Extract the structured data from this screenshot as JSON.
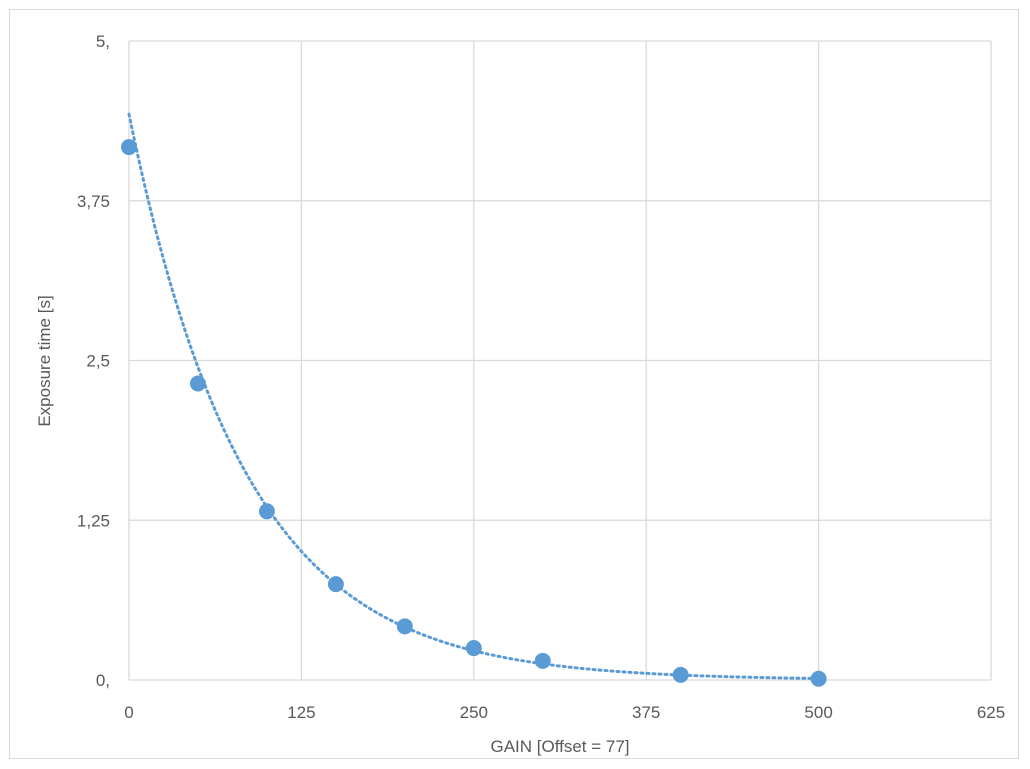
{
  "chart_data": {
    "type": "scatter",
    "title": "",
    "xlabel": "GAIN [Offset = 77]",
    "ylabel": "Exposure time [s]",
    "xlim": [
      0,
      625
    ],
    "ylim": [
      0,
      5
    ],
    "x_ticks": [
      0,
      125,
      250,
      375,
      500,
      625
    ],
    "x_tick_labels": [
      "0",
      "125",
      "250",
      "375",
      "500",
      "625"
    ],
    "y_ticks": [
      0,
      1.25,
      2.5,
      3.75,
      5
    ],
    "y_tick_labels": [
      "0,",
      "1,25",
      "2,5",
      "3,75",
      "5,"
    ],
    "grid": true,
    "legend": "none",
    "series": [
      {
        "x": [
          0,
          50,
          100,
          150,
          200,
          250,
          300,
          400,
          500
        ],
        "y": [
          4.17,
          2.32,
          1.32,
          0.75,
          0.42,
          0.25,
          0.15,
          0.04,
          0.01
        ],
        "color": "#5b9bd5",
        "marker": "circle"
      }
    ],
    "trendline": {
      "type": "exponential",
      "style": "dotted",
      "color": "#5b9bd5"
    }
  }
}
